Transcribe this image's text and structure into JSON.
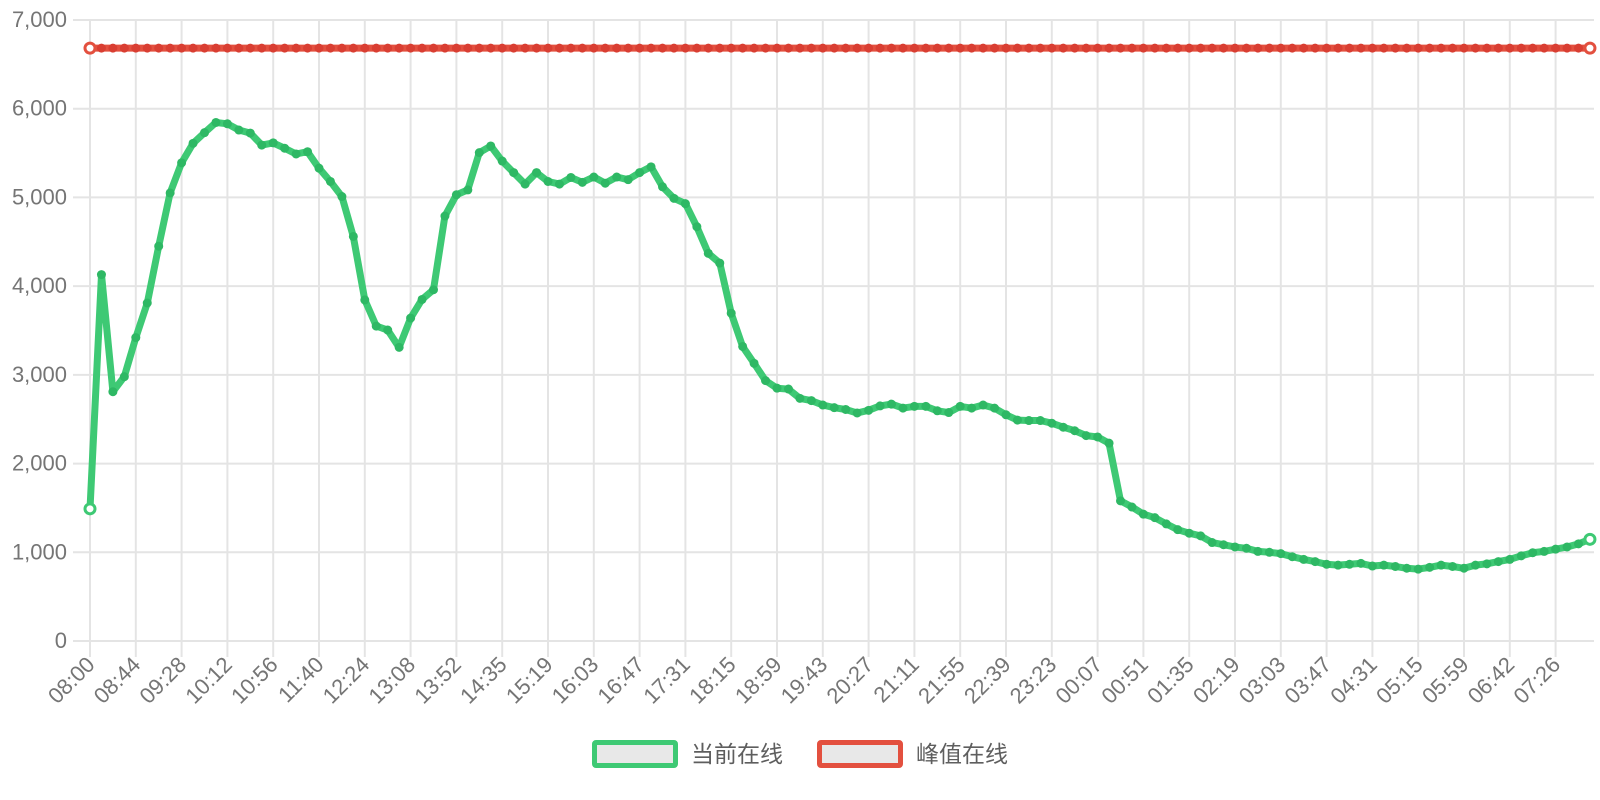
{
  "chart_data": {
    "type": "line",
    "title": "",
    "xlabel": "",
    "ylabel": "",
    "x_labels": [
      "08:00",
      "08:44",
      "09:28",
      "10:12",
      "10:56",
      "11:40",
      "12:24",
      "13:08",
      "13:52",
      "14:35",
      "15:19",
      "16:03",
      "16:47",
      "17:31",
      "18:15",
      "18:59",
      "19:43",
      "20:27",
      "21:11",
      "21:55",
      "22:39",
      "23:23",
      "00:07",
      "00:51",
      "01:35",
      "02:19",
      "03:03",
      "03:47",
      "04:31",
      "05:15",
      "05:59",
      "06:42",
      "07:26"
    ],
    "x_label_every_n_points": 4,
    "x_label_rotation_deg": -45,
    "y_axis": {
      "min": 0,
      "max": 7000,
      "tick_step": 1000,
      "tick_labels": [
        "0",
        "1,000",
        "2,000",
        "3,000",
        "4,000",
        "5,000",
        "6,000",
        "7,000"
      ]
    },
    "grid": true,
    "legend_position": "bottom",
    "series": [
      {
        "name": "当前在线",
        "color": "#3ec974",
        "marker_color": "#2eb864",
        "endpoint_marker": "hollow-circle",
        "values": [
          1490,
          4130,
          2810,
          2980,
          3420,
          3810,
          4450,
          5050,
          5390,
          5610,
          5730,
          5845,
          5830,
          5760,
          5725,
          5590,
          5615,
          5555,
          5490,
          5515,
          5330,
          5180,
          5010,
          4560,
          3845,
          3550,
          3505,
          3310,
          3640,
          3850,
          3960,
          4790,
          5030,
          5085,
          5505,
          5580,
          5410,
          5280,
          5150,
          5280,
          5180,
          5150,
          5225,
          5170,
          5230,
          5160,
          5230,
          5200,
          5280,
          5345,
          5120,
          4990,
          4930,
          4670,
          4370,
          4260,
          3695,
          3320,
          3130,
          2935,
          2850,
          2840,
          2735,
          2710,
          2660,
          2630,
          2610,
          2570,
          2600,
          2650,
          2670,
          2625,
          2645,
          2645,
          2595,
          2575,
          2645,
          2625,
          2660,
          2625,
          2550,
          2490,
          2485,
          2485,
          2455,
          2410,
          2370,
          2315,
          2300,
          2230,
          1580,
          1510,
          1430,
          1390,
          1320,
          1255,
          1215,
          1185,
          1110,
          1085,
          1060,
          1045,
          1010,
          1000,
          985,
          950,
          920,
          895,
          865,
          855,
          865,
          875,
          845,
          855,
          840,
          820,
          810,
          830,
          855,
          840,
          820,
          855,
          870,
          895,
          920,
          960,
          995,
          1010,
          1035,
          1060,
          1095,
          1146
        ]
      },
      {
        "name": "峰值在线",
        "color": "#e3503f",
        "marker_color": "#d93e32",
        "endpoint_marker": "hollow-circle",
        "constant_value": 6683,
        "point_count": 132
      }
    ]
  },
  "legend": {
    "items": [
      {
        "label": "当前在线",
        "color": "#3ec974"
      },
      {
        "label": "峰值在线",
        "color": "#e3503f"
      }
    ]
  }
}
